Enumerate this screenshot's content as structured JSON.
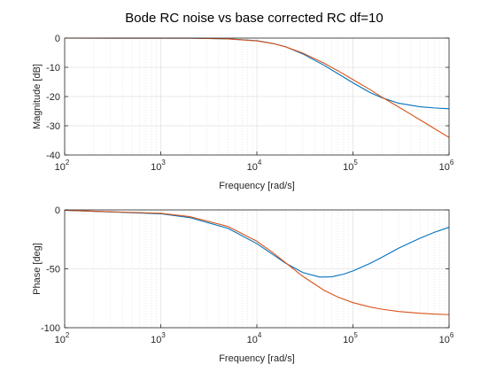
{
  "title": "Bode RC noise vs base corrected RC df=10",
  "chart_data": [
    {
      "type": "line",
      "xscale": "log",
      "xlim": [
        100,
        1000000
      ],
      "ylim": [
        -40,
        0
      ],
      "xlabel": "Frequency [rad/s]",
      "ylabel": "Magnitude [dB]",
      "x_ticks": [
        100,
        1000,
        10000,
        100000,
        1000000
      ],
      "x_tick_labels": [
        {
          "base": "10",
          "exp": "2"
        },
        {
          "base": "10",
          "exp": "3"
        },
        {
          "base": "10",
          "exp": "4"
        },
        {
          "base": "10",
          "exp": "5"
        },
        {
          "base": "10",
          "exp": "6"
        }
      ],
      "y_ticks": [
        0,
        -10,
        -20,
        -30,
        -40
      ],
      "y_tick_labels": [
        "0",
        "-10",
        "-20",
        "-30",
        "-40"
      ],
      "grid": true,
      "series": [
        {
          "color": "#0072BD",
          "points": [
            [
              100,
              0
            ],
            [
              1000,
              -0.01
            ],
            [
              2000,
              -0.04
            ],
            [
              5000,
              -0.25
            ],
            [
              10000,
              -0.9
            ],
            [
              15000,
              -1.9
            ],
            [
              20000,
              -3.0
            ],
            [
              30000,
              -5.4
            ],
            [
              50000,
              -9.3
            ],
            [
              70000,
              -12.2
            ],
            [
              100000,
              -15.3
            ],
            [
              150000,
              -18.6
            ],
            [
              200000,
              -20.4
            ],
            [
              300000,
              -22.3
            ],
            [
              500000,
              -23.5
            ],
            [
              700000,
              -23.9
            ],
            [
              1000000,
              -24.2
            ]
          ]
        },
        {
          "color": "#D95319",
          "points": [
            [
              100,
              0
            ],
            [
              1000,
              -0.01
            ],
            [
              2000,
              -0.04
            ],
            [
              5000,
              -0.28
            ],
            [
              10000,
              -0.97
            ],
            [
              15000,
              -1.94
            ],
            [
              20000,
              -3.01
            ],
            [
              30000,
              -5.12
            ],
            [
              50000,
              -8.6
            ],
            [
              70000,
              -11.2
            ],
            [
              100000,
              -14.2
            ],
            [
              150000,
              -17.6
            ],
            [
              200000,
              -20.2
            ],
            [
              300000,
              -23.6
            ],
            [
              500000,
              -28.0
            ],
            [
              700000,
              -30.9
            ],
            [
              1000000,
              -34.0
            ]
          ]
        }
      ]
    },
    {
      "type": "line",
      "xscale": "log",
      "xlim": [
        100,
        1000000
      ],
      "ylim": [
        -100,
        0
      ],
      "xlabel": "Frequency [rad/s]",
      "ylabel": "Phase [deg]",
      "x_ticks": [
        100,
        1000,
        10000,
        100000,
        1000000
      ],
      "x_tick_labels": [
        {
          "base": "10",
          "exp": "2"
        },
        {
          "base": "10",
          "exp": "3"
        },
        {
          "base": "10",
          "exp": "4"
        },
        {
          "base": "10",
          "exp": "5"
        },
        {
          "base": "10",
          "exp": "6"
        }
      ],
      "y_ticks": [
        0,
        -50,
        -100
      ],
      "y_tick_labels": [
        "0",
        "-50",
        "-100"
      ],
      "grid": true,
      "series": [
        {
          "color": "#0072BD",
          "points": [
            [
              100,
              -0.3
            ],
            [
              1000,
              -3.3
            ],
            [
              2000,
              -6.5
            ],
            [
              5000,
              -15.6
            ],
            [
              10000,
              -28.6
            ],
            [
              15000,
              -38.4
            ],
            [
              20000,
              -45.3
            ],
            [
              30000,
              -53.1
            ],
            [
              45000,
              -57.0
            ],
            [
              60000,
              -56.8
            ],
            [
              80000,
              -54.5
            ],
            [
              100000,
              -51.8
            ],
            [
              150000,
              -45.5
            ],
            [
              200000,
              -40.2
            ],
            [
              300000,
              -32.4
            ],
            [
              500000,
              -24.0
            ],
            [
              700000,
              -19.1
            ],
            [
              1000000,
              -14.7
            ]
          ]
        },
        {
          "color": "#D95319",
          "points": [
            [
              100,
              -0.3
            ],
            [
              1000,
              -2.9
            ],
            [
              2000,
              -5.7
            ],
            [
              5000,
              -14.0
            ],
            [
              10000,
              -26.6
            ],
            [
              15000,
              -36.9
            ],
            [
              20000,
              -45.0
            ],
            [
              30000,
              -56.3
            ],
            [
              50000,
              -68.2
            ],
            [
              70000,
              -74.1
            ],
            [
              100000,
              -78.7
            ],
            [
              150000,
              -82.4
            ],
            [
              200000,
              -84.3
            ],
            [
              300000,
              -86.2
            ],
            [
              500000,
              -87.7
            ],
            [
              700000,
              -88.4
            ],
            [
              1000000,
              -88.9
            ]
          ]
        }
      ]
    }
  ]
}
